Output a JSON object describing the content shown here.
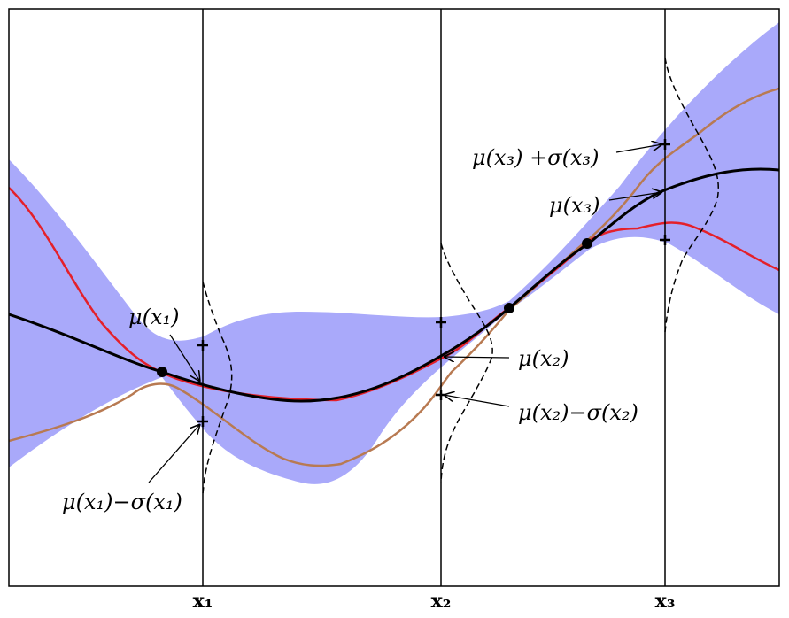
{
  "labels": {
    "mu_x1": "μ(x₁)",
    "mu_minus_sigma_x1": "μ(x₁)−σ(x₁)",
    "mu_x2": "μ(x₂)",
    "mu_minus_sigma_x2": "μ(x₂)−σ(x₂)",
    "mu_x3": "μ(x₃)",
    "mu_plus_sigma_x3": "μ(x₃) +σ(x₃)"
  },
  "ticks": {
    "x1": "x₁",
    "x2": "x₂",
    "x3": "x₃"
  },
  "colors": {
    "band": "#a9a9fa",
    "mean": "#000000",
    "sample_red": "#e4202a",
    "sample_brown": "#b87a52"
  }
}
